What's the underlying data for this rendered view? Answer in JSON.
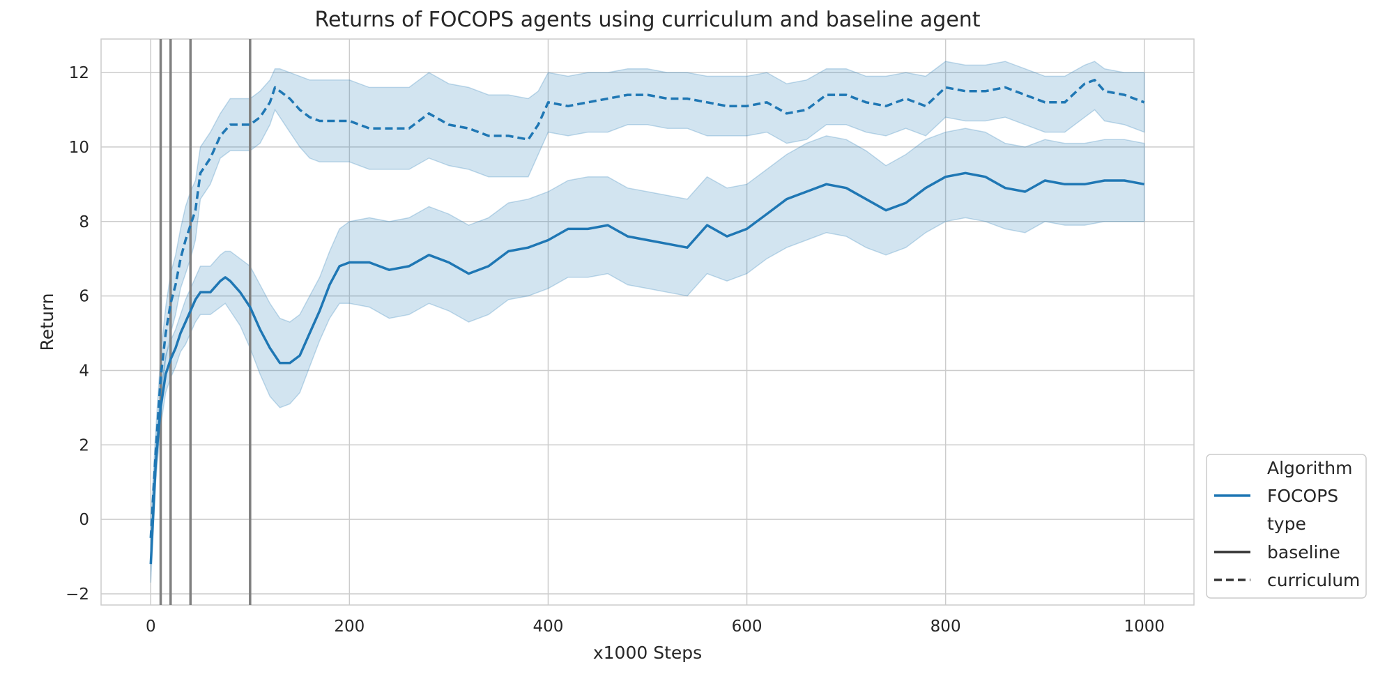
{
  "chart_data": {
    "type": "line",
    "title": "Returns of FOCOPS agents using curriculum and baseline agent",
    "xlabel": "x1000 Steps",
    "ylabel": "Return",
    "xlim": [
      -50,
      1050
    ],
    "ylim": [
      -2.3,
      12.9
    ],
    "x_ticks": [
      0,
      200,
      400,
      600,
      800,
      1000
    ],
    "y_ticks": [
      -2,
      0,
      2,
      4,
      6,
      8,
      10,
      12
    ],
    "x_tick_labels": [
      "0",
      "200",
      "400",
      "600",
      "800",
      "1000"
    ],
    "y_tick_labels": [
      "−2",
      "0",
      "2",
      "4",
      "6",
      "8",
      "10",
      "12"
    ],
    "grid": true,
    "legend_position": "outside-right-bottom",
    "vertical_lines": [
      10,
      20,
      40,
      100
    ],
    "colors": {
      "series": "#1f77b4",
      "band": "#1f77b4",
      "vertical_lines": "#808080",
      "grid": "#cccccc",
      "legend_line": "#333333"
    },
    "legend": {
      "title_1": "Algorithm",
      "entry_1": "FOCOPS",
      "title_2": "type",
      "entry_2": "baseline",
      "entry_3": "curriculum"
    },
    "series": [
      {
        "name": "baseline",
        "x": [
          0,
          5,
          10,
          15,
          20,
          25,
          30,
          35,
          40,
          45,
          50,
          60,
          70,
          75,
          80,
          90,
          100,
          110,
          120,
          130,
          140,
          150,
          160,
          170,
          180,
          190,
          200,
          220,
          240,
          260,
          280,
          300,
          320,
          340,
          360,
          380,
          400,
          420,
          440,
          460,
          480,
          500,
          520,
          540,
          560,
          580,
          600,
          620,
          640,
          660,
          680,
          700,
          720,
          740,
          760,
          780,
          800,
          820,
          840,
          860,
          880,
          900,
          920,
          940,
          960,
          980,
          1000
        ],
        "y": [
          -1.2,
          1.5,
          3.0,
          3.9,
          4.3,
          4.6,
          5.0,
          5.3,
          5.6,
          5.9,
          6.1,
          6.1,
          6.4,
          6.5,
          6.4,
          6.1,
          5.7,
          5.1,
          4.6,
          4.2,
          4.2,
          4.4,
          5.0,
          5.6,
          6.3,
          6.8,
          6.9,
          6.9,
          6.7,
          6.8,
          7.1,
          6.9,
          6.6,
          6.8,
          7.2,
          7.3,
          7.5,
          7.8,
          7.8,
          7.9,
          7.6,
          7.5,
          7.4,
          7.3,
          7.9,
          7.6,
          7.8,
          8.2,
          8.6,
          8.8,
          9.0,
          8.9,
          8.6,
          8.3,
          8.5,
          8.9,
          9.2,
          9.3,
          9.2,
          8.9,
          8.8,
          9.1,
          9.0,
          9.0,
          9.1,
          9.1,
          9.0
        ],
        "lower": [
          -1.7,
          1.0,
          2.5,
          3.4,
          3.8,
          4.1,
          4.5,
          4.7,
          5.0,
          5.3,
          5.5,
          5.5,
          5.7,
          5.8,
          5.6,
          5.2,
          4.6,
          3.9,
          3.3,
          3.0,
          3.1,
          3.4,
          4.1,
          4.8,
          5.4,
          5.8,
          5.8,
          5.7,
          5.4,
          5.5,
          5.8,
          5.6,
          5.3,
          5.5,
          5.9,
          6.0,
          6.2,
          6.5,
          6.5,
          6.6,
          6.3,
          6.2,
          6.1,
          6.0,
          6.6,
          6.4,
          6.6,
          7.0,
          7.3,
          7.5,
          7.7,
          7.6,
          7.3,
          7.1,
          7.3,
          7.7,
          8.0,
          8.1,
          8.0,
          7.8,
          7.7,
          8.0,
          7.9,
          7.9,
          8.0,
          8.0,
          8.0
        ],
        "upper": [
          -0.7,
          2.0,
          3.5,
          4.4,
          4.8,
          5.1,
          5.5,
          5.9,
          6.2,
          6.5,
          6.8,
          6.8,
          7.1,
          7.2,
          7.2,
          7.0,
          6.8,
          6.3,
          5.8,
          5.4,
          5.3,
          5.5,
          6.0,
          6.5,
          7.2,
          7.8,
          8.0,
          8.1,
          8.0,
          8.1,
          8.4,
          8.2,
          7.9,
          8.1,
          8.5,
          8.6,
          8.8,
          9.1,
          9.2,
          9.2,
          8.9,
          8.8,
          8.7,
          8.6,
          9.2,
          8.9,
          9.0,
          9.4,
          9.8,
          10.1,
          10.3,
          10.2,
          9.9,
          9.5,
          9.8,
          10.2,
          10.4,
          10.5,
          10.4,
          10.1,
          10.0,
          10.2,
          10.1,
          10.1,
          10.2,
          10.2,
          10.1
        ]
      },
      {
        "name": "curriculum",
        "x": [
          0,
          5,
          10,
          15,
          20,
          25,
          30,
          35,
          40,
          45,
          50,
          60,
          70,
          80,
          90,
          100,
          110,
          120,
          125,
          130,
          140,
          150,
          160,
          170,
          180,
          200,
          220,
          240,
          260,
          280,
          300,
          320,
          340,
          360,
          380,
          390,
          400,
          420,
          440,
          460,
          480,
          500,
          520,
          540,
          560,
          580,
          600,
          620,
          640,
          660,
          680,
          700,
          720,
          740,
          760,
          780,
          800,
          820,
          840,
          860,
          880,
          900,
          920,
          940,
          950,
          960,
          980,
          1000
        ],
        "y": [
          -0.5,
          1.8,
          3.8,
          5.0,
          5.8,
          6.3,
          7.0,
          7.5,
          7.9,
          8.3,
          9.3,
          9.7,
          10.3,
          10.6,
          10.6,
          10.6,
          10.8,
          11.2,
          11.6,
          11.5,
          11.3,
          11.0,
          10.8,
          10.7,
          10.7,
          10.7,
          10.5,
          10.5,
          10.5,
          10.9,
          10.6,
          10.5,
          10.3,
          10.3,
          10.2,
          10.6,
          11.2,
          11.1,
          11.2,
          11.3,
          11.4,
          11.4,
          11.3,
          11.3,
          11.2,
          11.1,
          11.1,
          11.2,
          10.9,
          11.0,
          11.4,
          11.4,
          11.2,
          11.1,
          11.3,
          11.1,
          11.6,
          11.5,
          11.5,
          11.6,
          11.4,
          11.2,
          11.2,
          11.7,
          11.8,
          11.5,
          11.4,
          11.2
        ],
        "lower": [
          -1.0,
          1.2,
          3.2,
          4.3,
          5.0,
          5.5,
          6.2,
          6.6,
          7.0,
          7.5,
          8.6,
          9.0,
          9.7,
          9.9,
          9.9,
          9.9,
          10.1,
          10.6,
          11.0,
          10.8,
          10.4,
          10.0,
          9.7,
          9.6,
          9.6,
          9.6,
          9.4,
          9.4,
          9.4,
          9.7,
          9.5,
          9.4,
          9.2,
          9.2,
          9.2,
          9.8,
          10.4,
          10.3,
          10.4,
          10.4,
          10.6,
          10.6,
          10.5,
          10.5,
          10.3,
          10.3,
          10.3,
          10.4,
          10.1,
          10.2,
          10.6,
          10.6,
          10.4,
          10.3,
          10.5,
          10.3,
          10.8,
          10.7,
          10.7,
          10.8,
          10.6,
          10.4,
          10.4,
          10.8,
          11.0,
          10.7,
          10.6,
          10.4
        ],
        "upper": [
          0.0,
          2.4,
          4.4,
          5.7,
          6.6,
          7.1,
          7.8,
          8.4,
          8.8,
          9.1,
          10.0,
          10.4,
          10.9,
          11.3,
          11.3,
          11.3,
          11.5,
          11.8,
          12.1,
          12.1,
          12.0,
          11.9,
          11.8,
          11.8,
          11.8,
          11.8,
          11.6,
          11.6,
          11.6,
          12.0,
          11.7,
          11.6,
          11.4,
          11.4,
          11.3,
          11.5,
          12.0,
          11.9,
          12.0,
          12.0,
          12.1,
          12.1,
          12.0,
          12.0,
          11.9,
          11.9,
          11.9,
          12.0,
          11.7,
          11.8,
          12.1,
          12.1,
          11.9,
          11.9,
          12.0,
          11.9,
          12.3,
          12.2,
          12.2,
          12.3,
          12.1,
          11.9,
          11.9,
          12.2,
          12.3,
          12.1,
          12.0,
          12.0
        ]
      }
    ]
  }
}
